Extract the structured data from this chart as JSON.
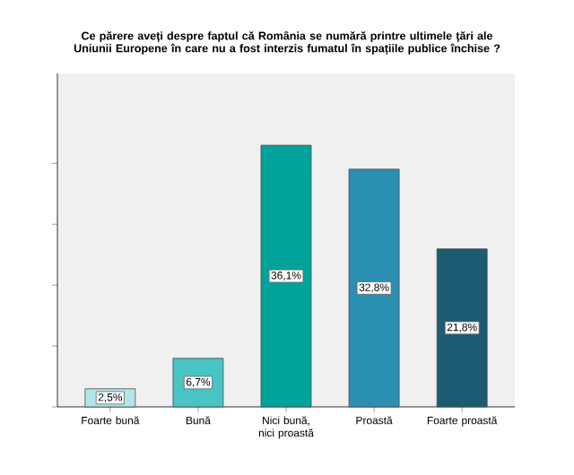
{
  "chart_data": {
    "type": "bar",
    "title": "Ce părere aveți despre faptul că România se numără printre ultimele țări ale Uniunii Europene în care nu a fost interzis fumatul în spațiile publice închise ?",
    "categories": [
      "Foarte bună",
      "Bună",
      "Nici bună, nici proastă",
      "Proastă",
      "Foarte proastă"
    ],
    "values": [
      2.5,
      6.7,
      36.1,
      32.8,
      21.8
    ],
    "colors": [
      "#b3e6e8",
      "#48c4c4",
      "#00a39a",
      "#2a8fb0",
      "#1d5b72"
    ],
    "value_labels": [
      "2,5%",
      "6,7%",
      "36,1%",
      "32,8%",
      "21,8%"
    ],
    "ylim": [
      0,
      46
    ],
    "yticks": [
      {
        "value": 0,
        "label": null
      },
      {
        "value": 8.4,
        "label": null
      },
      {
        "value": 16.8,
        "label": null
      },
      {
        "value": 25.2,
        "label": null
      },
      {
        "value": 33.6,
        "label": null
      }
    ],
    "tick_labels": "x",
    "grid": false
  }
}
